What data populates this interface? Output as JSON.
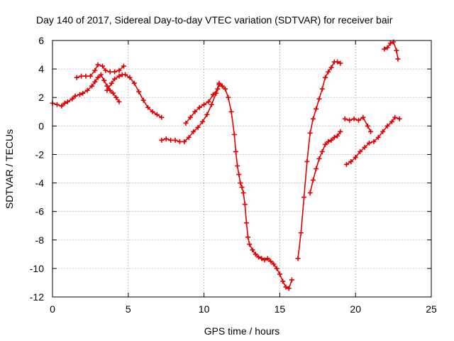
{
  "chart_data": {
    "type": "scatter",
    "title": "Day 140 of 2017, Sidereal Day-to-day VTEC variation (SDTVAR) for receiver bair",
    "xlabel": "GPS time / hours",
    "ylabel": "SDTVAR / TECUs",
    "xlim": [
      0,
      25
    ],
    "ylim": [
      -12,
      6
    ],
    "xticks": [
      0,
      5,
      10,
      15,
      20,
      25
    ],
    "yticks": [
      -12,
      -10,
      -8,
      -6,
      -4,
      -2,
      0,
      2,
      4,
      6
    ],
    "grid": true,
    "color": "#e00000",
    "marker": "plus",
    "series": [
      {
        "x": [
          0.0,
          0.3,
          0.6,
          0.8,
          1.0,
          1.3,
          1.5,
          1.8,
          2.0,
          2.3,
          2.6,
          2.8,
          3.0,
          3.2,
          3.4,
          3.6,
          3.8,
          4.0,
          4.2,
          4.4
        ],
        "y": [
          1.6,
          1.5,
          1.4,
          1.6,
          1.7,
          1.9,
          2.1,
          2.2,
          2.3,
          2.5,
          2.8,
          3.1,
          3.4,
          3.6,
          3.2,
          2.8,
          2.5,
          2.3,
          2.0,
          1.7
        ]
      },
      {
        "x": [
          1.6,
          1.9,
          2.2,
          2.5,
          2.8,
          3.0,
          3.3,
          3.5,
          3.8,
          4.1,
          4.4,
          4.7
        ],
        "y": [
          3.4,
          3.5,
          3.5,
          3.5,
          3.9,
          4.3,
          4.2,
          3.9,
          3.8,
          3.8,
          3.9,
          4.2
        ]
      },
      {
        "x": [
          3.6,
          3.9,
          4.1,
          4.4,
          4.6,
          4.8,
          5.1,
          5.4,
          5.7,
          6.0,
          6.3,
          6.6,
          6.9,
          7.2
        ],
        "y": [
          2.5,
          3.0,
          3.3,
          3.5,
          3.6,
          3.6,
          3.4,
          3.0,
          2.4,
          1.8,
          1.3,
          1.0,
          0.8,
          0.6
        ]
      },
      {
        "x": [
          7.2,
          7.5,
          7.8,
          8.1,
          8.4,
          8.7,
          9.0,
          9.3,
          9.6,
          9.9,
          10.2,
          10.5,
          10.8,
          11.0
        ],
        "y": [
          -1.0,
          -0.9,
          -1.0,
          -1.0,
          -1.1,
          -1.1,
          -0.8,
          -0.4,
          -0.1,
          0.3,
          0.8,
          1.5,
          2.3,
          2.9
        ]
      },
      {
        "x": [
          8.8,
          9.1,
          9.4,
          9.7,
          10.0,
          10.3,
          10.6,
          10.9,
          11.0,
          11.2,
          11.4,
          11.6,
          11.8,
          12.0,
          12.1,
          12.2,
          12.3,
          12.4,
          12.5,
          12.6,
          12.7,
          12.8,
          12.9,
          13.0,
          13.2,
          13.4,
          13.6,
          13.8,
          14.0,
          14.2,
          14.4,
          14.6,
          14.8,
          15.0,
          15.2,
          15.4,
          15.6,
          15.8
        ],
        "y": [
          0.2,
          0.6,
          1.0,
          1.3,
          1.5,
          1.7,
          2.2,
          2.6,
          3.0,
          2.8,
          2.6,
          2.0,
          1.0,
          -0.6,
          -1.8,
          -2.8,
          -3.4,
          -4.0,
          -4.3,
          -4.7,
          -5.5,
          -6.8,
          -7.8,
          -8.3,
          -8.7,
          -9.0,
          -9.2,
          -9.3,
          -9.4,
          -9.3,
          -9.5,
          -9.7,
          -10.0,
          -10.4,
          -10.9,
          -11.3,
          -11.4,
          -10.8
        ]
      },
      {
        "x": [
          16.2,
          16.4,
          16.6,
          16.8,
          17.0,
          17.2,
          17.4,
          17.6,
          17.8,
          18.0,
          18.2,
          18.4,
          18.6,
          18.8,
          19.0
        ],
        "y": [
          -9.3,
          -7.5,
          -5.0,
          -2.5,
          -0.5,
          0.5,
          1.2,
          1.9,
          2.6,
          3.4,
          3.8,
          4.1,
          4.5,
          4.5,
          4.4
        ]
      },
      {
        "x": [
          17.0,
          17.2,
          17.4,
          17.6,
          17.8,
          18.0,
          18.2,
          18.4,
          18.6,
          18.8,
          19.0
        ],
        "y": [
          -4.7,
          -3.8,
          -3.0,
          -2.3,
          -1.8,
          -1.3,
          -1.1,
          -1.0,
          -0.8,
          -0.7,
          -0.4
        ]
      },
      {
        "x": [
          19.3,
          19.6,
          19.9,
          20.2,
          20.5,
          20.8,
          21.0
        ],
        "y": [
          0.5,
          0.4,
          0.5,
          0.4,
          0.6,
          0.0,
          -0.4
        ]
      },
      {
        "x": [
          19.4,
          19.7,
          20.0,
          20.3,
          20.6,
          20.9,
          21.2,
          21.5,
          21.8,
          22.1,
          22.4,
          22.6,
          22.9
        ],
        "y": [
          -2.7,
          -2.5,
          -2.2,
          -1.8,
          -1.5,
          -1.2,
          -1.1,
          -0.8,
          -0.4,
          0.0,
          0.3,
          0.6,
          0.5
        ]
      },
      {
        "x": [
          21.9,
          22.1,
          22.3,
          22.5,
          22.7,
          22.8
        ],
        "y": [
          5.4,
          5.5,
          5.8,
          5.9,
          5.3,
          4.7
        ]
      }
    ]
  }
}
